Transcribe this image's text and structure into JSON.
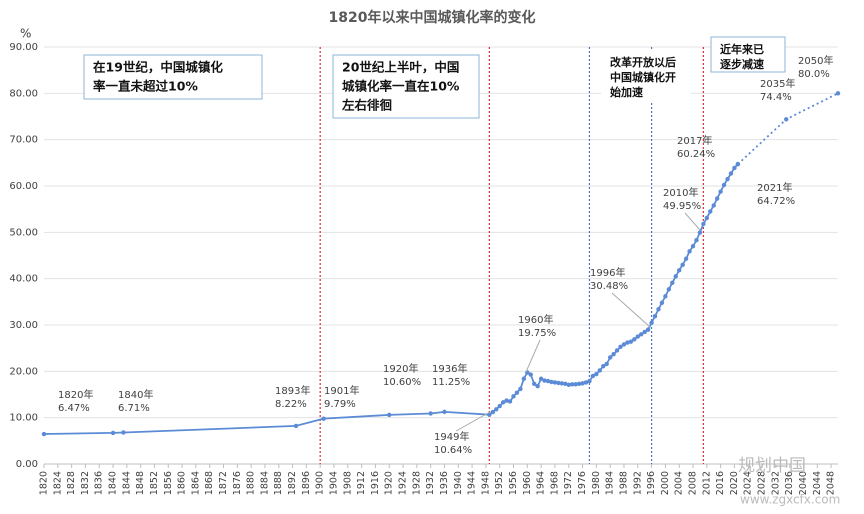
{
  "chart_data": {
    "type": "line",
    "title": "1820年以来中国城镇化率的变化",
    "ylabel": "%",
    "xlim": [
      1820,
      2050
    ],
    "xticks": [
      1820,
      1824,
      1828,
      1832,
      1836,
      1840,
      1844,
      1848,
      1852,
      1856,
      1860,
      1864,
      1868,
      1872,
      1876,
      1880,
      1884,
      1888,
      1892,
      1896,
      1900,
      1904,
      1908,
      1912,
      1916,
      1920,
      1924,
      1928,
      1932,
      1936,
      1940,
      1944,
      1948,
      1952,
      1956,
      1960,
      1964,
      1968,
      1972,
      1976,
      1980,
      1984,
      1988,
      1992,
      1996,
      2000,
      2004,
      2008,
      2012,
      2016,
      2020,
      2024,
      2028,
      2032,
      2036,
      2040,
      2044,
      2048
    ],
    "ylim": [
      0,
      90
    ],
    "yticks": [
      {
        "value": 0,
        "label": "0.00"
      },
      {
        "value": 10,
        "label": "10.00"
      },
      {
        "value": 20,
        "label": "20.00"
      },
      {
        "value": 30,
        "label": "30.00"
      },
      {
        "value": 40,
        "label": "40.00"
      },
      {
        "value": 50,
        "label": "50.00"
      },
      {
        "value": 60,
        "label": "60.00"
      },
      {
        "value": 70,
        "label": "70.00"
      },
      {
        "value": 80,
        "label": "80.00"
      },
      {
        "value": 90,
        "label": "90.00"
      }
    ],
    "grid": true,
    "series": [
      {
        "color": "#5b8bd6",
        "line_style": "solid",
        "x": [
          1820,
          1840,
          1843,
          1893,
          1901,
          1920,
          1932,
          1936,
          1949,
          1950,
          1951,
          1952,
          1953,
          1954,
          1955,
          1956,
          1957,
          1958,
          1959,
          1960,
          1961,
          1962,
          1963,
          1964,
          1965,
          1966,
          1967,
          1968,
          1969,
          1970,
          1971,
          1972,
          1973,
          1974,
          1975,
          1976,
          1977,
          1978,
          1979,
          1980,
          1981,
          1982,
          1983,
          1984,
          1985,
          1986,
          1987,
          1988,
          1989,
          1990,
          1991,
          1992,
          1993,
          1994,
          1995,
          1996,
          1997,
          1998,
          1999,
          2000,
          2001,
          2002,
          2003,
          2004,
          2005,
          2006,
          2007,
          2008,
          2009,
          2010,
          2011,
          2012,
          2013,
          2014,
          2015,
          2016,
          2017,
          2018,
          2019,
          2020,
          2021
        ],
        "values": [
          6.47,
          6.71,
          6.8,
          8.22,
          9.79,
          10.6,
          10.9,
          11.25,
          10.64,
          11.2,
          11.8,
          12.5,
          13.3,
          13.7,
          13.5,
          14.6,
          15.4,
          16.2,
          18.4,
          19.75,
          19.3,
          17.3,
          16.8,
          18.4,
          18.0,
          17.9,
          17.7,
          17.6,
          17.5,
          17.4,
          17.3,
          17.1,
          17.2,
          17.2,
          17.3,
          17.4,
          17.6,
          17.9,
          19.0,
          19.4,
          20.2,
          21.1,
          21.6,
          23.0,
          23.7,
          24.5,
          25.3,
          25.8,
          26.2,
          26.4,
          26.9,
          27.5,
          28.0,
          28.5,
          29.0,
          30.48,
          31.9,
          33.4,
          34.8,
          36.2,
          37.7,
          39.1,
          40.5,
          41.8,
          43.0,
          44.3,
          45.9,
          47.0,
          48.3,
          49.95,
          51.8,
          53.1,
          54.5,
          55.8,
          57.3,
          58.8,
          60.24,
          61.5,
          62.7,
          63.9,
          64.72
        ]
      },
      {
        "color": "#5b8bd6",
        "line_style": "dotted",
        "x": [
          2021,
          2035,
          2050
        ],
        "values": [
          64.72,
          74.4,
          80.0
        ]
      }
    ],
    "vlines": [
      {
        "x": 1900,
        "color": "#e03030"
      },
      {
        "x": 1949,
        "color": "#e03030"
      },
      {
        "x": 1978,
        "color": "#4a72c8"
      },
      {
        "x": 1996,
        "color": "#4a72c8"
      },
      {
        "x": 2011,
        "color": "#e03030"
      }
    ],
    "boxes": [
      {
        "lines": [
          "在19世纪，中国城镇化",
          "率一直未超过10%"
        ]
      },
      {
        "lines": [
          "20世纪上半叶，中国",
          "城镇化率一直在10%",
          "左右徘徊"
        ]
      },
      {
        "lines": [
          "改革开放以后",
          "中国城镇化开",
          "始加速"
        ]
      },
      {
        "lines": [
          "近年来已",
          "逐步减速"
        ]
      }
    ],
    "annotations": [
      {
        "lines": [
          "1820年",
          "6.47%"
        ]
      },
      {
        "lines": [
          "1840年",
          "6.71%"
        ]
      },
      {
        "lines": [
          "1893年",
          "8.22%"
        ]
      },
      {
        "lines": [
          "1901年",
          "9.79%"
        ]
      },
      {
        "lines": [
          "1920年",
          "10.60%"
        ]
      },
      {
        "lines": [
          "1936年",
          "11.25%"
        ]
      },
      {
        "lines": [
          "1949年",
          "10.64%"
        ]
      },
      {
        "lines": [
          "1960年",
          "19.75%"
        ]
      },
      {
        "lines": [
          "1996年",
          "30.48%"
        ]
      },
      {
        "lines": [
          "2010年",
          "49.95%"
        ]
      },
      {
        "lines": [
          "2017年",
          "60.24%"
        ]
      },
      {
        "lines": [
          "2021年",
          "64.72%"
        ]
      },
      {
        "lines": [
          "2035年",
          "74.4%"
        ]
      },
      {
        "lines": [
          "2050年",
          "80.0%"
        ]
      }
    ],
    "watermark": [
      "规划中国",
      "www.zgxcfx.com"
    ]
  }
}
